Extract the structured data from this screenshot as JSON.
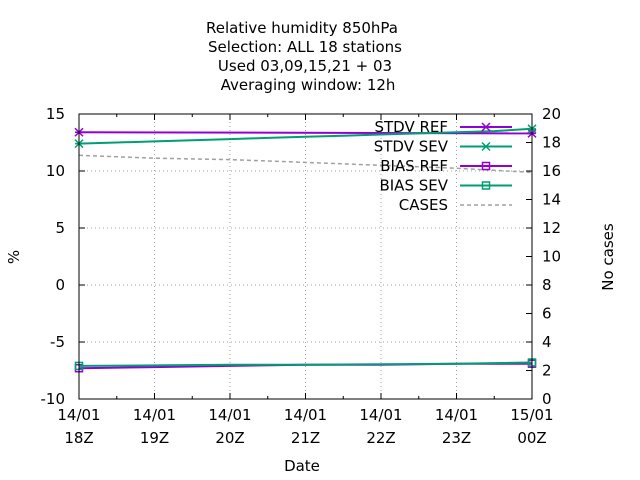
{
  "chart_data": {
    "type": "line",
    "title_lines": [
      "Relative humidity 850hPa",
      "Selection: ALL      18 stations",
      "Used  03,09,15,21  + 03",
      "Averaging window: 12h"
    ],
    "xlabel": "Date",
    "ylabel": "%",
    "y2label": "No cases",
    "x_ticks": [
      {
        "line1": "14/01",
        "line2": "18Z"
      },
      {
        "line1": "14/01",
        "line2": "19Z"
      },
      {
        "line1": "14/01",
        "line2": "20Z"
      },
      {
        "line1": "14/01",
        "line2": "21Z"
      },
      {
        "line1": "14/01",
        "line2": "22Z"
      },
      {
        "line1": "14/01",
        "line2": "23Z"
      },
      {
        "line1": "15/01",
        "line2": "00Z"
      }
    ],
    "xlim": [
      0,
      6
    ],
    "ylim": [
      -10,
      15
    ],
    "y_ticks": [
      "-10",
      "-5",
      "0",
      "5",
      "10",
      "15"
    ],
    "y2lim": [
      0,
      20
    ],
    "y2_ticks": [
      "0",
      "2",
      "4",
      "6",
      "8",
      "10",
      "12",
      "14",
      "16",
      "18",
      "20"
    ],
    "grid": true,
    "legend_position": "top-right",
    "series": [
      {
        "name": "STDV REF",
        "axis": "y",
        "color": "#9400d3",
        "dash": false,
        "marker": "x",
        "x": [
          0,
          6
        ],
        "y": [
          13.4,
          13.3
        ]
      },
      {
        "name": "STDV SEV",
        "axis": "y",
        "color": "#009e73",
        "dash": false,
        "marker": "x",
        "x": [
          0,
          0.5,
          1,
          1.5,
          2,
          2.5,
          3,
          3.5,
          4,
          4.5,
          5,
          5.5,
          6
        ],
        "y": [
          12.4,
          12.5,
          12.6,
          12.7,
          12.8,
          12.9,
          13.0,
          13.1,
          13.2,
          13.3,
          13.4,
          13.5,
          13.7
        ]
      },
      {
        "name": "BIAS REF",
        "axis": "y",
        "color": "#9400d3",
        "dash": false,
        "marker": "square",
        "x": [
          0,
          1,
          2,
          3,
          4,
          5,
          6
        ],
        "y": [
          -7.3,
          -7.2,
          -7.1,
          -7.0,
          -7.0,
          -6.9,
          -6.9
        ]
      },
      {
        "name": "BIAS SEV",
        "axis": "y",
        "color": "#009e73",
        "dash": false,
        "marker": "square",
        "x": [
          0,
          1,
          2,
          3,
          4,
          5,
          6
        ],
        "y": [
          -7.1,
          -7.05,
          -7.0,
          -7.0,
          -6.95,
          -6.9,
          -6.8
        ]
      },
      {
        "name": "CASES",
        "axis": "y2",
        "color": "#a0a0a0",
        "dash": true,
        "marker": "none",
        "x": [
          0,
          1,
          2,
          3,
          4,
          5,
          6
        ],
        "y": [
          17.1,
          16.9,
          16.8,
          16.6,
          16.4,
          16.2,
          15.9
        ]
      }
    ]
  }
}
